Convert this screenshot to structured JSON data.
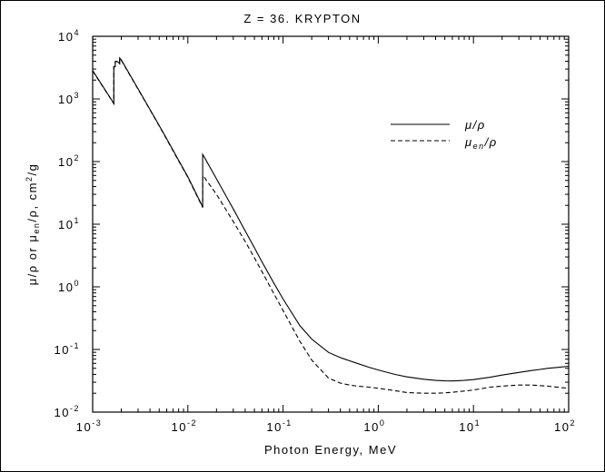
{
  "chart_data": {
    "type": "line",
    "title": "Z = 36.  KRYPTON",
    "xlabel": "Photon Energy, MeV",
    "ylabel": "μ/ρ or μen/ρ, cm2/g",
    "ylabel_parts": {
      "a": "μ/ρ or μ",
      "sub": "en",
      "b": "/ρ, cm",
      "sup": "2",
      "c": "/g"
    },
    "x_scale": "log",
    "y_scale": "log",
    "xlim": [
      0.001,
      100
    ],
    "ylim": [
      0.01,
      10000
    ],
    "x_ticks": [
      {
        "base": "10",
        "exp": "-3"
      },
      {
        "base": "10",
        "exp": "-2"
      },
      {
        "base": "10",
        "exp": "-1"
      },
      {
        "base": "10",
        "exp": "0"
      },
      {
        "base": "10",
        "exp": "1"
      },
      {
        "base": "10",
        "exp": "2"
      }
    ],
    "y_ticks": [
      {
        "base": "10",
        "exp": "-2"
      },
      {
        "base": "10",
        "exp": "-1"
      },
      {
        "base": "10",
        "exp": "0"
      },
      {
        "base": "10",
        "exp": "1"
      },
      {
        "base": "10",
        "exp": "2"
      },
      {
        "base": "10",
        "exp": "3"
      },
      {
        "base": "10",
        "exp": "4"
      }
    ],
    "grid": false,
    "legend_position": "top-right",
    "series": [
      {
        "name": "μ/ρ",
        "legend": {
          "main": "μ/ρ"
        },
        "style": "solid",
        "color": "#000000",
        "x": [
          0.001,
          0.00167,
          0.00167,
          0.00173,
          0.00173,
          0.0018,
          0.00192,
          0.00192,
          0.002,
          0.003,
          0.004,
          0.005,
          0.006,
          0.008,
          0.01,
          0.0143,
          0.0143,
          0.015,
          0.02,
          0.03,
          0.04,
          0.05,
          0.06,
          0.08,
          0.1,
          0.15,
          0.2,
          0.3,
          0.4,
          0.5,
          0.6,
          0.8,
          1,
          1.5,
          2,
          3,
          4,
          5,
          6,
          8,
          10,
          15,
          20,
          30,
          40,
          50,
          60,
          80,
          100
        ],
        "y": [
          2840,
          850,
          3300,
          3300,
          4000,
          4000,
          3700,
          4500,
          4200,
          1450,
          680,
          375,
          230,
          105,
          57,
          19,
          130,
          115,
          53,
          17.5,
          7.8,
          4.2,
          2.5,
          1.15,
          0.64,
          0.24,
          0.147,
          0.09,
          0.074,
          0.066,
          0.06,
          0.052,
          0.047,
          0.04,
          0.0365,
          0.0335,
          0.032,
          0.0315,
          0.0314,
          0.032,
          0.033,
          0.036,
          0.039,
          0.043,
          0.046,
          0.048,
          0.05,
          0.052,
          0.054
        ]
      },
      {
        "name": "μen/ρ",
        "legend": {
          "main": "μ",
          "sub": "en",
          "tail": "/ρ"
        },
        "style": "dashed",
        "color": "#000000",
        "x": [
          0.001,
          0.00167,
          0.00167,
          0.00173,
          0.00173,
          0.0018,
          0.00192,
          0.00192,
          0.002,
          0.003,
          0.004,
          0.005,
          0.006,
          0.008,
          0.01,
          0.0143,
          0.0143,
          0.015,
          0.02,
          0.03,
          0.04,
          0.05,
          0.06,
          0.08,
          0.1,
          0.15,
          0.2,
          0.3,
          0.4,
          0.5,
          0.6,
          0.8,
          1,
          1.5,
          2,
          3,
          4,
          5,
          6,
          8,
          10,
          15,
          20,
          30,
          40,
          50,
          60,
          80,
          100
        ],
        "y": [
          2800,
          840,
          3250,
          3250,
          3950,
          3950,
          3650,
          4400,
          4150,
          1430,
          670,
          370,
          226,
          103,
          56,
          18.5,
          60,
          55,
          30,
          11,
          5.3,
          2.9,
          1.75,
          0.78,
          0.42,
          0.135,
          0.068,
          0.035,
          0.029,
          0.027,
          0.026,
          0.025,
          0.024,
          0.022,
          0.0205,
          0.02,
          0.02,
          0.0203,
          0.0208,
          0.0217,
          0.0225,
          0.025,
          0.026,
          0.027,
          0.027,
          0.0265,
          0.026,
          0.0248,
          0.024
        ]
      }
    ]
  }
}
